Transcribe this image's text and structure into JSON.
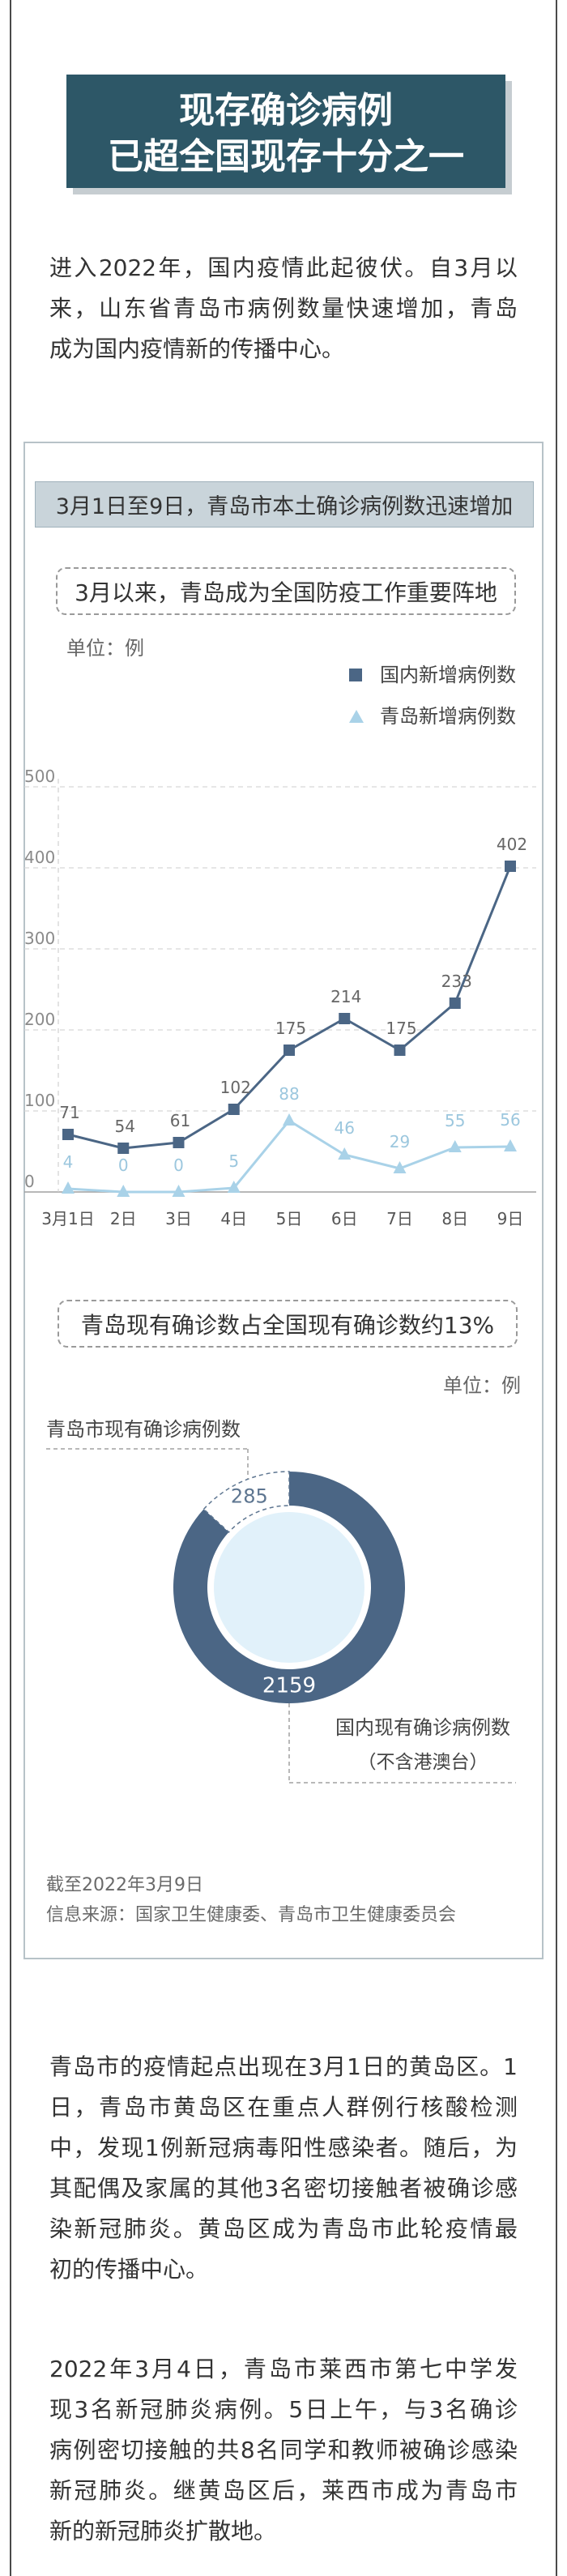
{
  "title": {
    "line1": "现存确诊病例",
    "line2": "已超全国现存十分之一"
  },
  "intro": {
    "lines": [
      "进入2022年，国内疫情此起彼伏。自3月以",
      "来，山东省青岛市病例数量快速增加，青岛",
      "成为国内疫情新的传播中心。"
    ]
  },
  "card": {
    "header": "3月1日至9日，青岛市本土确诊病例数迅速增加",
    "date_note": "截至2022年3月9日",
    "source": "信息来源：国家卫生健康委、青岛市卫生健康委员会"
  },
  "chart_data": [
    {
      "type": "line",
      "title": "3月以来，青岛成为全国防疫工作重要阵地",
      "unit": "单位：例",
      "x": [
        "3月1日",
        "2日",
        "3日",
        "4日",
        "5日",
        "6日",
        "7日",
        "8日",
        "9日"
      ],
      "series": [
        {
          "name": "国内新增病例数",
          "values": [
            71,
            54,
            61,
            102,
            175,
            214,
            175,
            233,
            402
          ],
          "marker": "square",
          "color": "#4b6685"
        },
        {
          "name": "青岛新增病例数",
          "values": [
            4,
            0,
            0,
            5,
            88,
            46,
            29,
            55,
            56
          ],
          "marker": "triangle",
          "color": "#a9d2e8"
        }
      ],
      "ylim": [
        0,
        500
      ],
      "yticks": [
        0,
        100,
        200,
        300,
        400,
        500
      ],
      "grid": true,
      "legend": "top-right",
      "data_labels": true
    },
    {
      "type": "pie",
      "donut": true,
      "title": "青岛现有确诊数占全国现有确诊数约13%",
      "unit": "单位：例",
      "segments": [
        {
          "label": "青岛市现有确诊病例数",
          "value": 285,
          "color": "#ffffff"
        },
        {
          "label": "国内现有确诊病例数",
          "note": "（不含港澳台）",
          "value": 2159,
          "color": "#4b6685"
        }
      ]
    }
  ],
  "paragraphs": [
    {
      "lines": [
        "青岛市的疫情起点出现在3月1日的黄岛区。1",
        "日，青岛市黄岛区在重点人群例行核酸检测",
        "中，发现1例新冠病毒阳性感染者。随后，为",
        "其配偶及家属的其他3名密切接触者被确诊感",
        "染新冠肺炎。黄岛区成为青岛市此轮疫情最",
        "初的传播中心。"
      ]
    },
    {
      "lines": [
        "2022年3月4日，青岛市莱西市第七中学发",
        "现3名新冠肺炎病例。5日上午，与3名确诊",
        "病例密切接触的共8名同学和教师被确诊感染",
        "新冠肺炎。继黄岛区后，莱西市成为青岛市",
        "新的新冠肺炎扩散地。"
      ]
    }
  ],
  "colors": {
    "title_bg": "#2d5767",
    "national": "#4b6685",
    "qingdao": "#a9d2e8",
    "header_bg": "#c9d4da",
    "donut_center": "#e1f1fa",
    "text": "#333333"
  }
}
